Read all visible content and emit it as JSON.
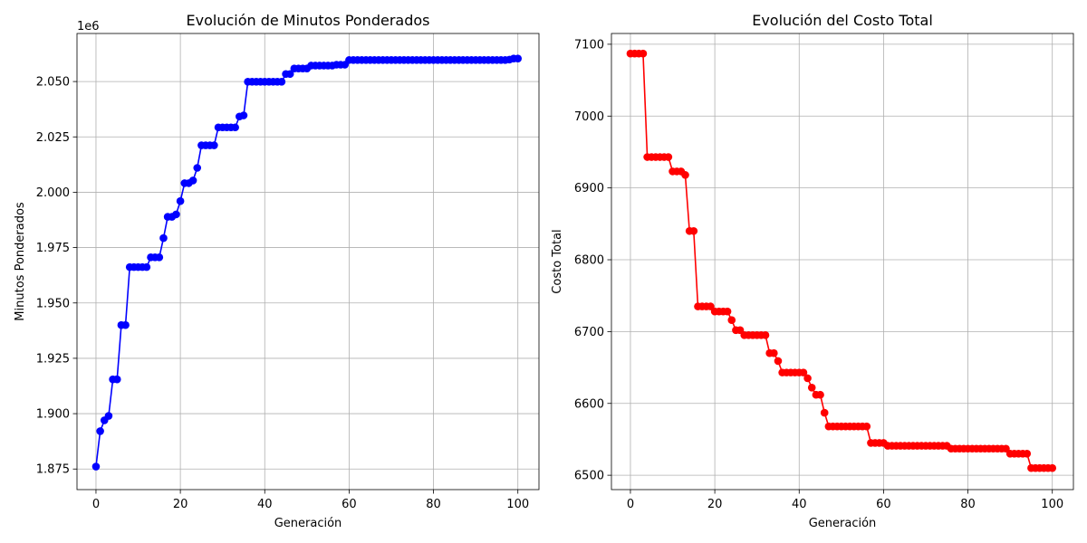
{
  "chart_data": [
    {
      "type": "line",
      "title": "Evolución de Minutos Ponderados",
      "xlabel": "Generación",
      "ylabel": "Minutos Ponderados",
      "y_offset_label": "1e6",
      "xlim": [
        -4.5,
        105
      ],
      "ylim": [
        1.8657,
        2.0717
      ],
      "x_ticks": [
        0,
        20,
        40,
        60,
        80,
        100
      ],
      "x_tick_labels": [
        "0",
        "20",
        "40",
        "60",
        "80",
        "100"
      ],
      "y_ticks": [
        1.875,
        1.9,
        1.925,
        1.95,
        1.975,
        2.0,
        2.025,
        2.05
      ],
      "y_tick_labels": [
        "1.875",
        "1.900",
        "1.925",
        "1.950",
        "1.975",
        "2.000",
        "2.025",
        "2.050"
      ],
      "grid": true,
      "color": "#0000ff",
      "marker": "circle",
      "x": [
        0,
        1,
        2,
        3,
        4,
        5,
        6,
        7,
        8,
        9,
        10,
        11,
        12,
        13,
        14,
        15,
        16,
        17,
        18,
        19,
        20,
        21,
        22,
        23,
        24,
        25,
        26,
        27,
        28,
        29,
        30,
        31,
        32,
        33,
        34,
        35,
        36,
        37,
        38,
        39,
        40,
        41,
        42,
        43,
        44,
        45,
        46,
        47,
        48,
        49,
        50,
        51,
        52,
        53,
        54,
        55,
        56,
        57,
        58,
        59,
        60,
        61,
        62,
        63,
        64,
        65,
        66,
        67,
        68,
        69,
        70,
        71,
        72,
        73,
        74,
        75,
        76,
        77,
        78,
        79,
        80,
        81,
        82,
        83,
        84,
        85,
        86,
        87,
        88,
        89,
        90,
        91,
        92,
        93,
        94,
        95,
        96,
        97,
        98,
        99,
        100
      ],
      "y": [
        1.8761,
        1.8921,
        1.897,
        1.899,
        1.9155,
        1.9155,
        1.94,
        1.94,
        1.9662,
        1.9662,
        1.9662,
        1.9662,
        1.9662,
        1.9706,
        1.9706,
        1.9706,
        1.9793,
        1.9889,
        1.9889,
        1.99,
        1.996,
        2.0041,
        2.0041,
        2.0053,
        2.011,
        2.0212,
        2.0212,
        2.0212,
        2.0212,
        2.0293,
        2.0293,
        2.0293,
        2.0293,
        2.0293,
        2.0342,
        2.0347,
        2.0499,
        2.0499,
        2.0499,
        2.0499,
        2.0499,
        2.0499,
        2.0499,
        2.0499,
        2.0499,
        2.0534,
        2.0534,
        2.0559,
        2.0559,
        2.0559,
        2.0559,
        2.0572,
        2.0572,
        2.0572,
        2.0572,
        2.0572,
        2.0572,
        2.0576,
        2.0576,
        2.0576,
        2.0597,
        2.0597,
        2.0597,
        2.0597,
        2.0597,
        2.0597,
        2.0597,
        2.0597,
        2.0597,
        2.0597,
        2.0597,
        2.0597,
        2.0597,
        2.0597,
        2.0597,
        2.0597,
        2.0597,
        2.0597,
        2.0597,
        2.0597,
        2.0597,
        2.0597,
        2.0597,
        2.0597,
        2.0597,
        2.0597,
        2.0597,
        2.0597,
        2.0597,
        2.0597,
        2.0597,
        2.0597,
        2.0597,
        2.0597,
        2.0597,
        2.0597,
        2.0597,
        2.0597,
        2.0599,
        2.0604,
        2.0604
      ]
    },
    {
      "type": "line",
      "title": "Evolución del Costo Total",
      "xlabel": "Generación",
      "ylabel": "Costo Total",
      "xlim": [
        -4.5,
        105
      ],
      "ylim": [
        6480,
        7115
      ],
      "x_ticks": [
        0,
        20,
        40,
        60,
        80,
        100
      ],
      "x_tick_labels": [
        "0",
        "20",
        "40",
        "60",
        "80",
        "100"
      ],
      "y_ticks": [
        6500,
        6600,
        6700,
        6800,
        6900,
        7000,
        7100
      ],
      "y_tick_labels": [
        "6500",
        "6600",
        "6700",
        "6800",
        "6900",
        "7000",
        "7100"
      ],
      "grid": true,
      "color": "#ff0000",
      "marker": "circle",
      "x": [
        0,
        1,
        2,
        3,
        4,
        5,
        6,
        7,
        8,
        9,
        10,
        11,
        12,
        13,
        14,
        15,
        16,
        17,
        18,
        19,
        20,
        21,
        22,
        23,
        24,
        25,
        26,
        27,
        28,
        29,
        30,
        31,
        32,
        33,
        34,
        35,
        36,
        37,
        38,
        39,
        40,
        41,
        42,
        43,
        44,
        45,
        46,
        47,
        48,
        49,
        50,
        51,
        52,
        53,
        54,
        55,
        56,
        57,
        58,
        59,
        60,
        61,
        62,
        63,
        64,
        65,
        66,
        67,
        68,
        69,
        70,
        71,
        72,
        73,
        74,
        75,
        76,
        77,
        78,
        79,
        80,
        81,
        82,
        83,
        84,
        85,
        86,
        87,
        88,
        89,
        90,
        91,
        92,
        93,
        94,
        95,
        96,
        97,
        98,
        99,
        100
      ],
      "y": [
        7087,
        7087,
        7087,
        7087,
        6943,
        6943,
        6943,
        6943,
        6943,
        6943,
        6923,
        6923,
        6923,
        6918,
        6840,
        6840,
        6735,
        6735,
        6735,
        6735,
        6728,
        6728,
        6728,
        6728,
        6716,
        6702,
        6702,
        6695,
        6695,
        6695,
        6695,
        6695,
        6695,
        6670,
        6670,
        6659,
        6643,
        6643,
        6643,
        6643,
        6643,
        6643,
        6635,
        6622,
        6612,
        6612,
        6587,
        6568,
        6568,
        6568,
        6568,
        6568,
        6568,
        6568,
        6568,
        6568,
        6568,
        6545,
        6545,
        6545,
        6545,
        6541,
        6541,
        6541,
        6541,
        6541,
        6541,
        6541,
        6541,
        6541,
        6541,
        6541,
        6541,
        6541,
        6541,
        6541,
        6537,
        6537,
        6537,
        6537,
        6537,
        6537,
        6537,
        6537,
        6537,
        6537,
        6537,
        6537,
        6537,
        6537,
        6530,
        6530,
        6530,
        6530,
        6530,
        6510,
        6510,
        6510,
        6510,
        6510,
        6510
      ]
    }
  ]
}
